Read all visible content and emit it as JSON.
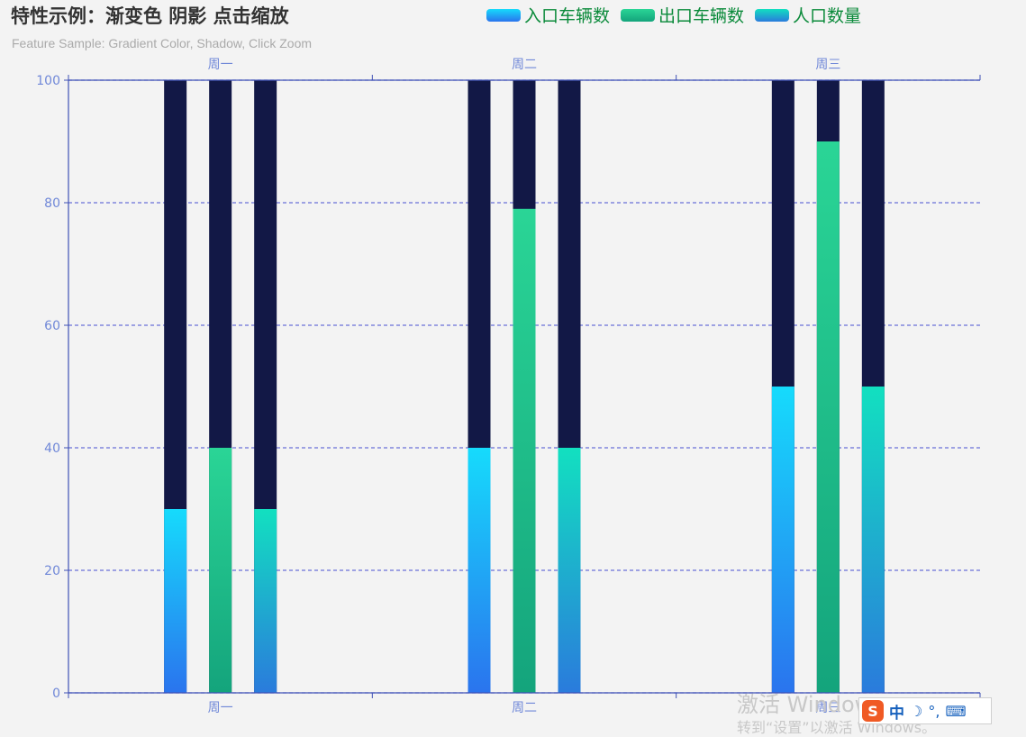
{
  "title": "特性示例：渐变色 阴影 点击缩放",
  "subtitle": "Feature Sample: Gradient Color, Shadow, Click Zoom",
  "legend": [
    {
      "name": "入口车辆数",
      "color_top": "#16dbfc",
      "color_bottom": "#2a74ee"
    },
    {
      "name": "出口车辆数",
      "color_top": "#2ad596",
      "color_bottom": "#14a47c"
    },
    {
      "name": "人口数量",
      "color_top": "#12e0c0",
      "color_bottom": "#2a7bdc"
    }
  ],
  "chart_data": {
    "type": "bar",
    "categories": [
      "周一",
      "周二",
      "周三"
    ],
    "series": [
      {
        "name": "入口车辆数",
        "values": [
          30,
          40,
          50
        ]
      },
      {
        "name": "出口车辆数",
        "values": [
          40,
          79,
          90
        ]
      },
      {
        "name": "人口数量",
        "values": [
          30,
          40,
          50
        ]
      }
    ],
    "background_bar": {
      "value": 100,
      "color": "#121846"
    },
    "ylim": [
      0,
      100
    ],
    "yticks": [
      "0",
      "20",
      "40",
      "60",
      "80",
      "100"
    ],
    "grid": true,
    "legend_position": "top",
    "x_axis_top_labels": true,
    "axis_color": "#3f51b5",
    "axis_label_color": "#7088d8",
    "grid_color": "#6a70d8"
  },
  "watermark": {
    "line1": "激活 Windows",
    "line2": "转到“设置”以激活 Windows。"
  },
  "ime": {
    "logo": "S",
    "mode": "中",
    "icons": [
      "moon-icon",
      "punctuation-icon",
      "keyboard-icon"
    ]
  }
}
